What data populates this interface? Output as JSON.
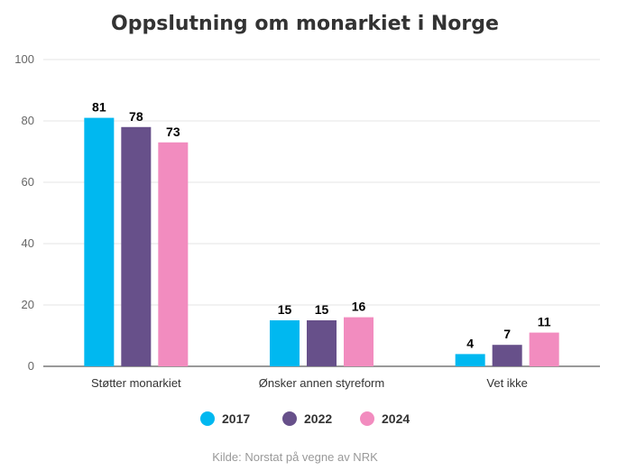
{
  "chart_data": {
    "type": "bar",
    "title": "Oppslutning om monarkiet i Norge",
    "categories": [
      "Støtter monarkiet",
      "Ønsker annen styreform",
      "Vet ikke"
    ],
    "series": [
      {
        "name": "2017",
        "values": [
          81,
          15,
          4
        ],
        "color": "#00b8f0"
      },
      {
        "name": "2022",
        "values": [
          78,
          15,
          7
        ],
        "color": "#67508a"
      },
      {
        "name": "2024",
        "values": [
          73,
          16,
          11
        ],
        "color": "#f28cbf"
      }
    ],
    "yticks": [
      "0",
      "20",
      "40",
      "60",
      "80",
      "100"
    ],
    "ylim": [
      0,
      100
    ],
    "grid": true,
    "legend_position": "bottom-center",
    "source": "Kilde: Norstat på vegne av NRK"
  }
}
